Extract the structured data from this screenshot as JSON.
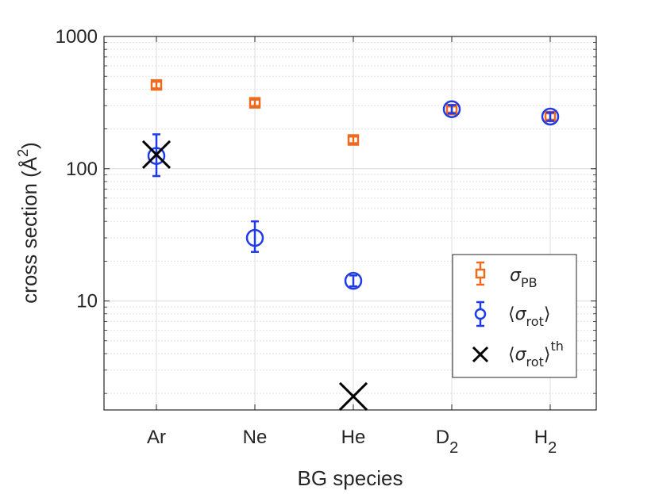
{
  "chart_data": {
    "type": "scatter",
    "x_scale": "category",
    "y_scale": "log",
    "categories": [
      "Ar",
      "Ne",
      "He",
      "D2",
      "H2"
    ],
    "category_labels": [
      {
        "base": "Ar",
        "sub": ""
      },
      {
        "base": "Ne",
        "sub": ""
      },
      {
        "base": "He",
        "sub": ""
      },
      {
        "base": "D",
        "sub": "2"
      },
      {
        "base": "H",
        "sub": "2"
      }
    ],
    "xlabel": "BG species",
    "ylabel": {
      "text": "cross section (",
      "unit": "Å",
      "power": "2",
      "close": ")"
    },
    "ylim": [
      1.5,
      1000
    ],
    "yticks": [
      10,
      100,
      1000
    ],
    "ytick_labels": [
      "10",
      "100",
      "1000"
    ],
    "grid": true,
    "legend_position": "bottom-right",
    "series": [
      {
        "name": "σ_PB",
        "legend_symbol": "σ",
        "legend_sub": "PB",
        "marker": "square",
        "color": "#ED6A1E",
        "points": [
          {
            "x": "Ar",
            "y": 430,
            "lo": 405,
            "hi": 455
          },
          {
            "x": "Ne",
            "y": 315,
            "lo": 298,
            "hi": 333
          },
          {
            "x": "He",
            "y": 165,
            "lo": 156,
            "hi": 175
          },
          {
            "x": "D2",
            "y": 280,
            "lo": 266,
            "hi": 296
          },
          {
            "x": "H2",
            "y": 248,
            "lo": 235,
            "hi": 262
          }
        ]
      },
      {
        "name": "⟨σ_rot⟩",
        "legend_symbol": "σ",
        "legend_sub": "rot",
        "marker": "circle",
        "color": "#1F3BE6",
        "points": [
          {
            "x": "Ar",
            "y": 125,
            "lo": 88,
            "hi": 182
          },
          {
            "x": "Ne",
            "y": 30,
            "lo": 23.5,
            "hi": 40
          },
          {
            "x": "He",
            "y": 14.2,
            "lo": 12.9,
            "hi": 15.6
          },
          {
            "x": "D2",
            "y": 282,
            "lo": 262,
            "hi": 303
          },
          {
            "x": "H2",
            "y": 248,
            "lo": 230,
            "hi": 266
          }
        ]
      },
      {
        "name": "⟨σ_rot⟩^th",
        "legend_symbol": "σ",
        "legend_sub": "rot",
        "legend_sup": "th",
        "marker": "x",
        "color": "#000000",
        "points": [
          {
            "x": "Ar",
            "y": 128
          },
          {
            "x": "He",
            "y": 1.9
          }
        ]
      }
    ]
  }
}
